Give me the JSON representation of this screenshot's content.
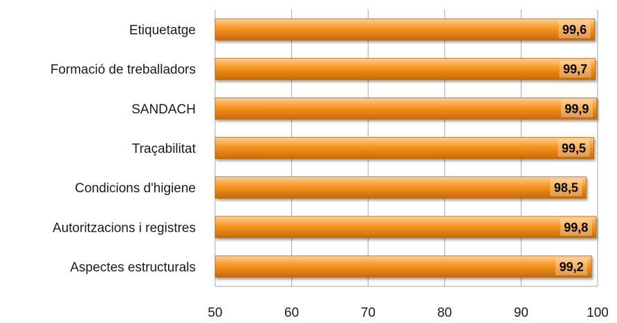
{
  "chart_data": {
    "type": "bar",
    "orientation": "horizontal",
    "categories": [
      "Etiquetatge",
      "Formació de treballadors",
      "SANDACH",
      "Traçabilitat",
      "Condicions d'higiene",
      "Autoritzacions i registres",
      "Aspectes estructurals"
    ],
    "values": [
      99.6,
      99.7,
      99.9,
      99.5,
      98.5,
      99.8,
      99.2
    ],
    "value_labels": [
      "99,6",
      "99,7",
      "99,9",
      "99,5",
      "98,5",
      "99,8",
      "99,2"
    ],
    "xlim": [
      50,
      100
    ],
    "x_ticks": [
      50,
      60,
      70,
      80,
      90,
      100
    ],
    "x_tick_labels": [
      "50",
      "60",
      "70",
      "80",
      "90",
      "100"
    ],
    "title": "",
    "xlabel": "",
    "ylabel": "",
    "grid": "vertical",
    "legend": "none",
    "colors": {
      "bar_light": "#fdd09a",
      "bar_mid": "#f7951e",
      "bar_dark": "#c56a0c",
      "bar_border": "#b5650f",
      "grid": "#a6a6a6",
      "label_box": "#fdebd3"
    }
  }
}
